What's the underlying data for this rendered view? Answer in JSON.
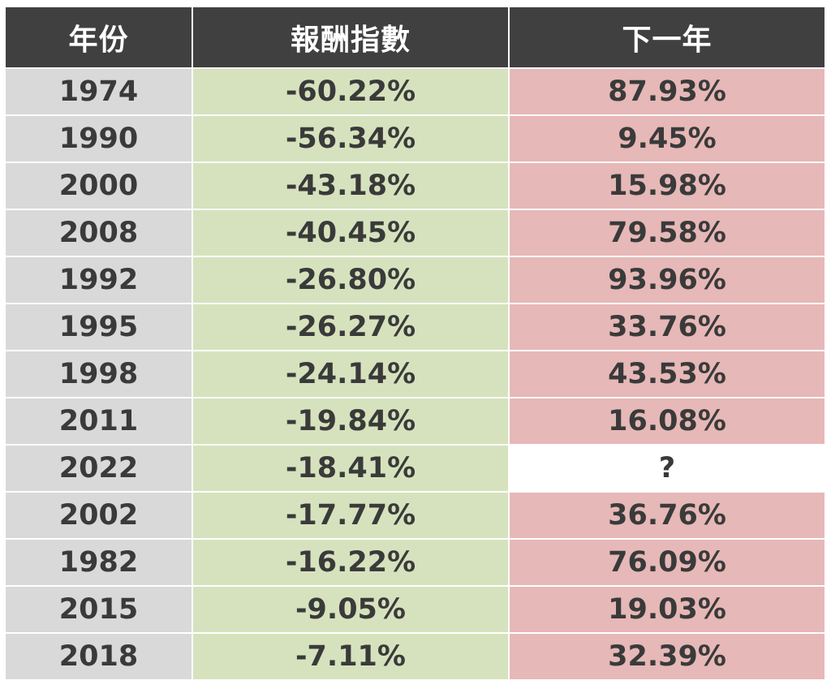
{
  "headers": {
    "year": "年份",
    "return": "報酬指數",
    "next_year": "下一年"
  },
  "colors": {
    "header_bg": "#404040",
    "year_bg": "#d9d9d9",
    "return_bg": "#d6e2bd",
    "next_bg": "#e6b8b7"
  },
  "rows": [
    {
      "year": "1974",
      "return": "-60.22%",
      "next": "87.93%"
    },
    {
      "year": "1990",
      "return": "-56.34%",
      "next": "9.45%"
    },
    {
      "year": "2000",
      "return": "-43.18%",
      "next": "15.98%"
    },
    {
      "year": "2008",
      "return": "-40.45%",
      "next": "79.58%"
    },
    {
      "year": "1992",
      "return": "-26.80%",
      "next": "93.96%"
    },
    {
      "year": "1995",
      "return": "-26.27%",
      "next": "33.76%"
    },
    {
      "year": "1998",
      "return": "-24.14%",
      "next": "43.53%"
    },
    {
      "year": "2011",
      "return": "-19.84%",
      "next": "16.08%"
    },
    {
      "year": "2022",
      "return": "-18.41%",
      "next": "?"
    },
    {
      "year": "2002",
      "return": "-17.77%",
      "next": "36.76%"
    },
    {
      "year": "1982",
      "return": "-16.22%",
      "next": "76.09%"
    },
    {
      "year": "2015",
      "return": "-9.05%",
      "next": "19.03%"
    },
    {
      "year": "2018",
      "return": "-7.11%",
      "next": "32.39%"
    }
  ]
}
